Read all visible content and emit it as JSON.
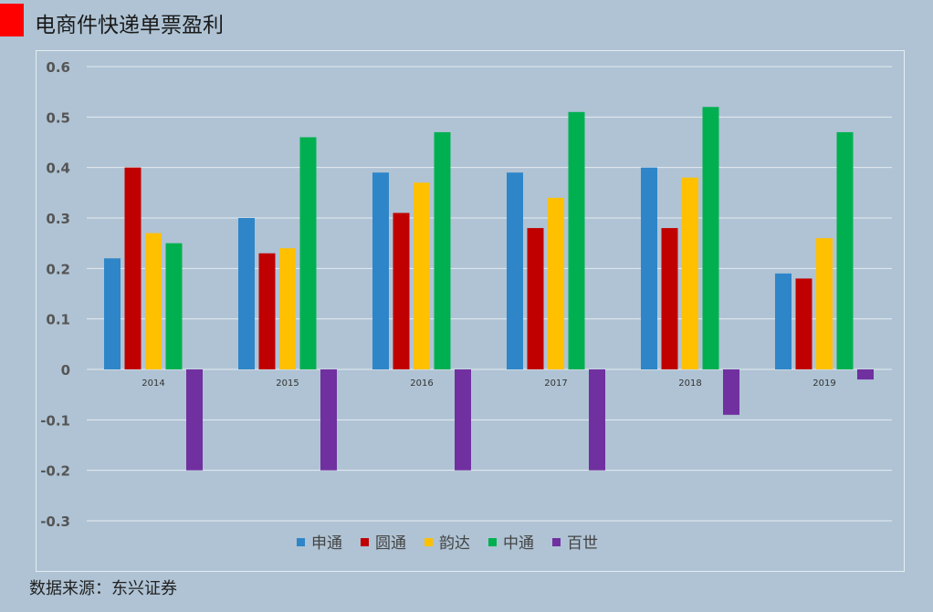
{
  "header": {
    "title": "电商件快递单票盈利"
  },
  "footer": {
    "source": "数据来源：东兴证券"
  },
  "chart_data": {
    "type": "bar",
    "title": "",
    "xlabel": "",
    "ylabel": "",
    "ylim": [
      -0.3,
      0.6
    ],
    "yticks": [
      "0.6",
      "0.5",
      "0.4",
      "0.3",
      "0.2",
      "0.1",
      "0",
      "-0.1",
      "-0.2",
      "-0.3"
    ],
    "categories": [
      "2014",
      "2015",
      "2016",
      "2017",
      "2018",
      "2019"
    ],
    "grid": true,
    "legend_position": "bottom",
    "series": [
      {
        "name": "申通",
        "color": "#2e86c9",
        "values": [
          0.22,
          0.3,
          0.39,
          0.39,
          0.4,
          0.19
        ]
      },
      {
        "name": "圆通",
        "color": "#c00000",
        "values": [
          0.4,
          0.23,
          0.31,
          0.28,
          0.28,
          0.18
        ]
      },
      {
        "name": "韵达",
        "color": "#ffc000",
        "values": [
          0.27,
          0.24,
          0.37,
          0.34,
          0.38,
          0.26
        ]
      },
      {
        "name": "中通",
        "color": "#00b050",
        "values": [
          0.25,
          0.46,
          0.47,
          0.51,
          0.52,
          0.47
        ]
      },
      {
        "name": "百世",
        "color": "#7030a0",
        "values": [
          -0.2,
          -0.2,
          -0.2,
          -0.2,
          -0.09,
          -0.02
        ]
      }
    ]
  }
}
